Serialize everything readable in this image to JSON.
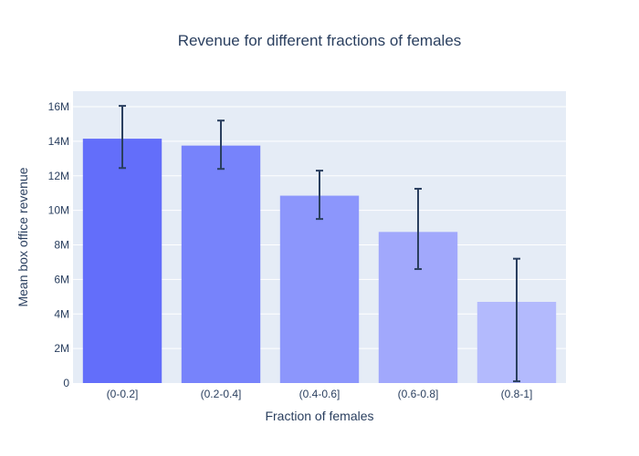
{
  "chart_data": {
    "type": "bar",
    "title": "Revenue for different fractions of females",
    "xlabel": "Fraction of females",
    "ylabel": "Mean box office revenue",
    "categories": [
      "(0-0.2]",
      "(0.2-0.4]",
      "(0.4-0.6]",
      "(0.6-0.8]",
      "(0.8-1]"
    ],
    "values": [
      14150000,
      13750000,
      10850000,
      8750000,
      4700000
    ],
    "error_lower": [
      12450000,
      12400000,
      9500000,
      6600000,
      100000
    ],
    "error_upper": [
      16050000,
      15200000,
      12300000,
      11250000,
      7200000
    ],
    "ylim": [
      0,
      16900000
    ],
    "yticks": [
      0,
      2000000,
      4000000,
      6000000,
      8000000,
      10000000,
      12000000,
      14000000,
      16000000
    ],
    "ytick_labels": [
      "0",
      "2M",
      "4M",
      "6M",
      "8M",
      "10M",
      "12M",
      "14M",
      "16M"
    ],
    "grid": true,
    "colors": {
      "bars": [
        "#636efa",
        "#7783fb",
        "#8c96fc",
        "#a1a8fc",
        "#b3bafd"
      ],
      "error_bar": "#2a3f5f",
      "plot_bg": "#e5ecf6",
      "grid": "#ffffff",
      "text": "#2a3f5f"
    }
  }
}
